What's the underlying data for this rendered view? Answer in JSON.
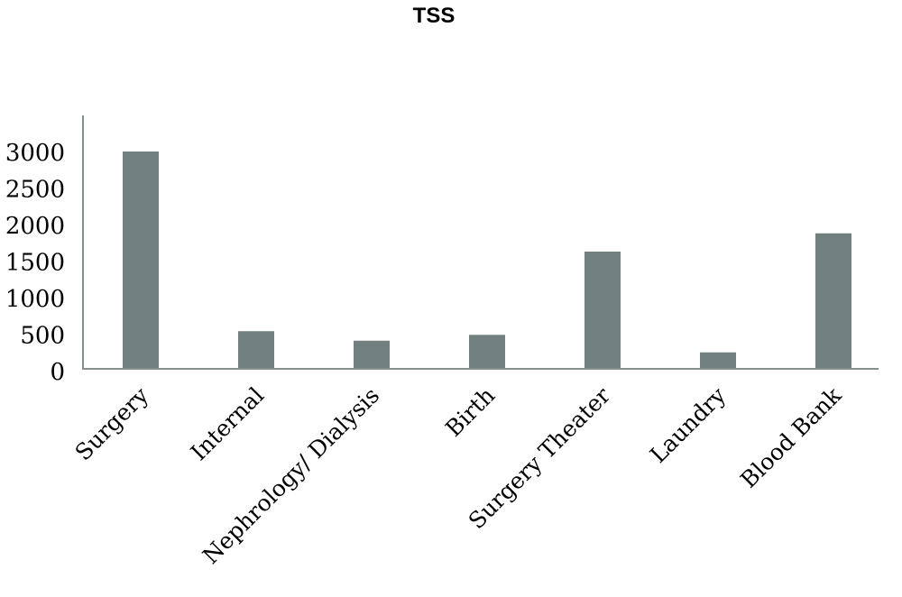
{
  "chart_data": {
    "type": "bar",
    "title": "TSS",
    "categories": [
      "Surgery",
      "Internal",
      "Nephrology/ Dialysis",
      "Birth",
      "Surgery Theater",
      "Laundry",
      "Blood Bank"
    ],
    "values": [
      3000,
      540,
      410,
      490,
      1630,
      250,
      1880
    ],
    "ylim": [
      0,
      3000
    ],
    "yticks": [
      "0",
      "500",
      "1000",
      "1500",
      "2000",
      "2500",
      "3000"
    ],
    "xlabel": "",
    "ylabel": "",
    "grid": false,
    "legend": "none",
    "bar_color": "#717f7e",
    "axis_color": "#868e8e"
  }
}
